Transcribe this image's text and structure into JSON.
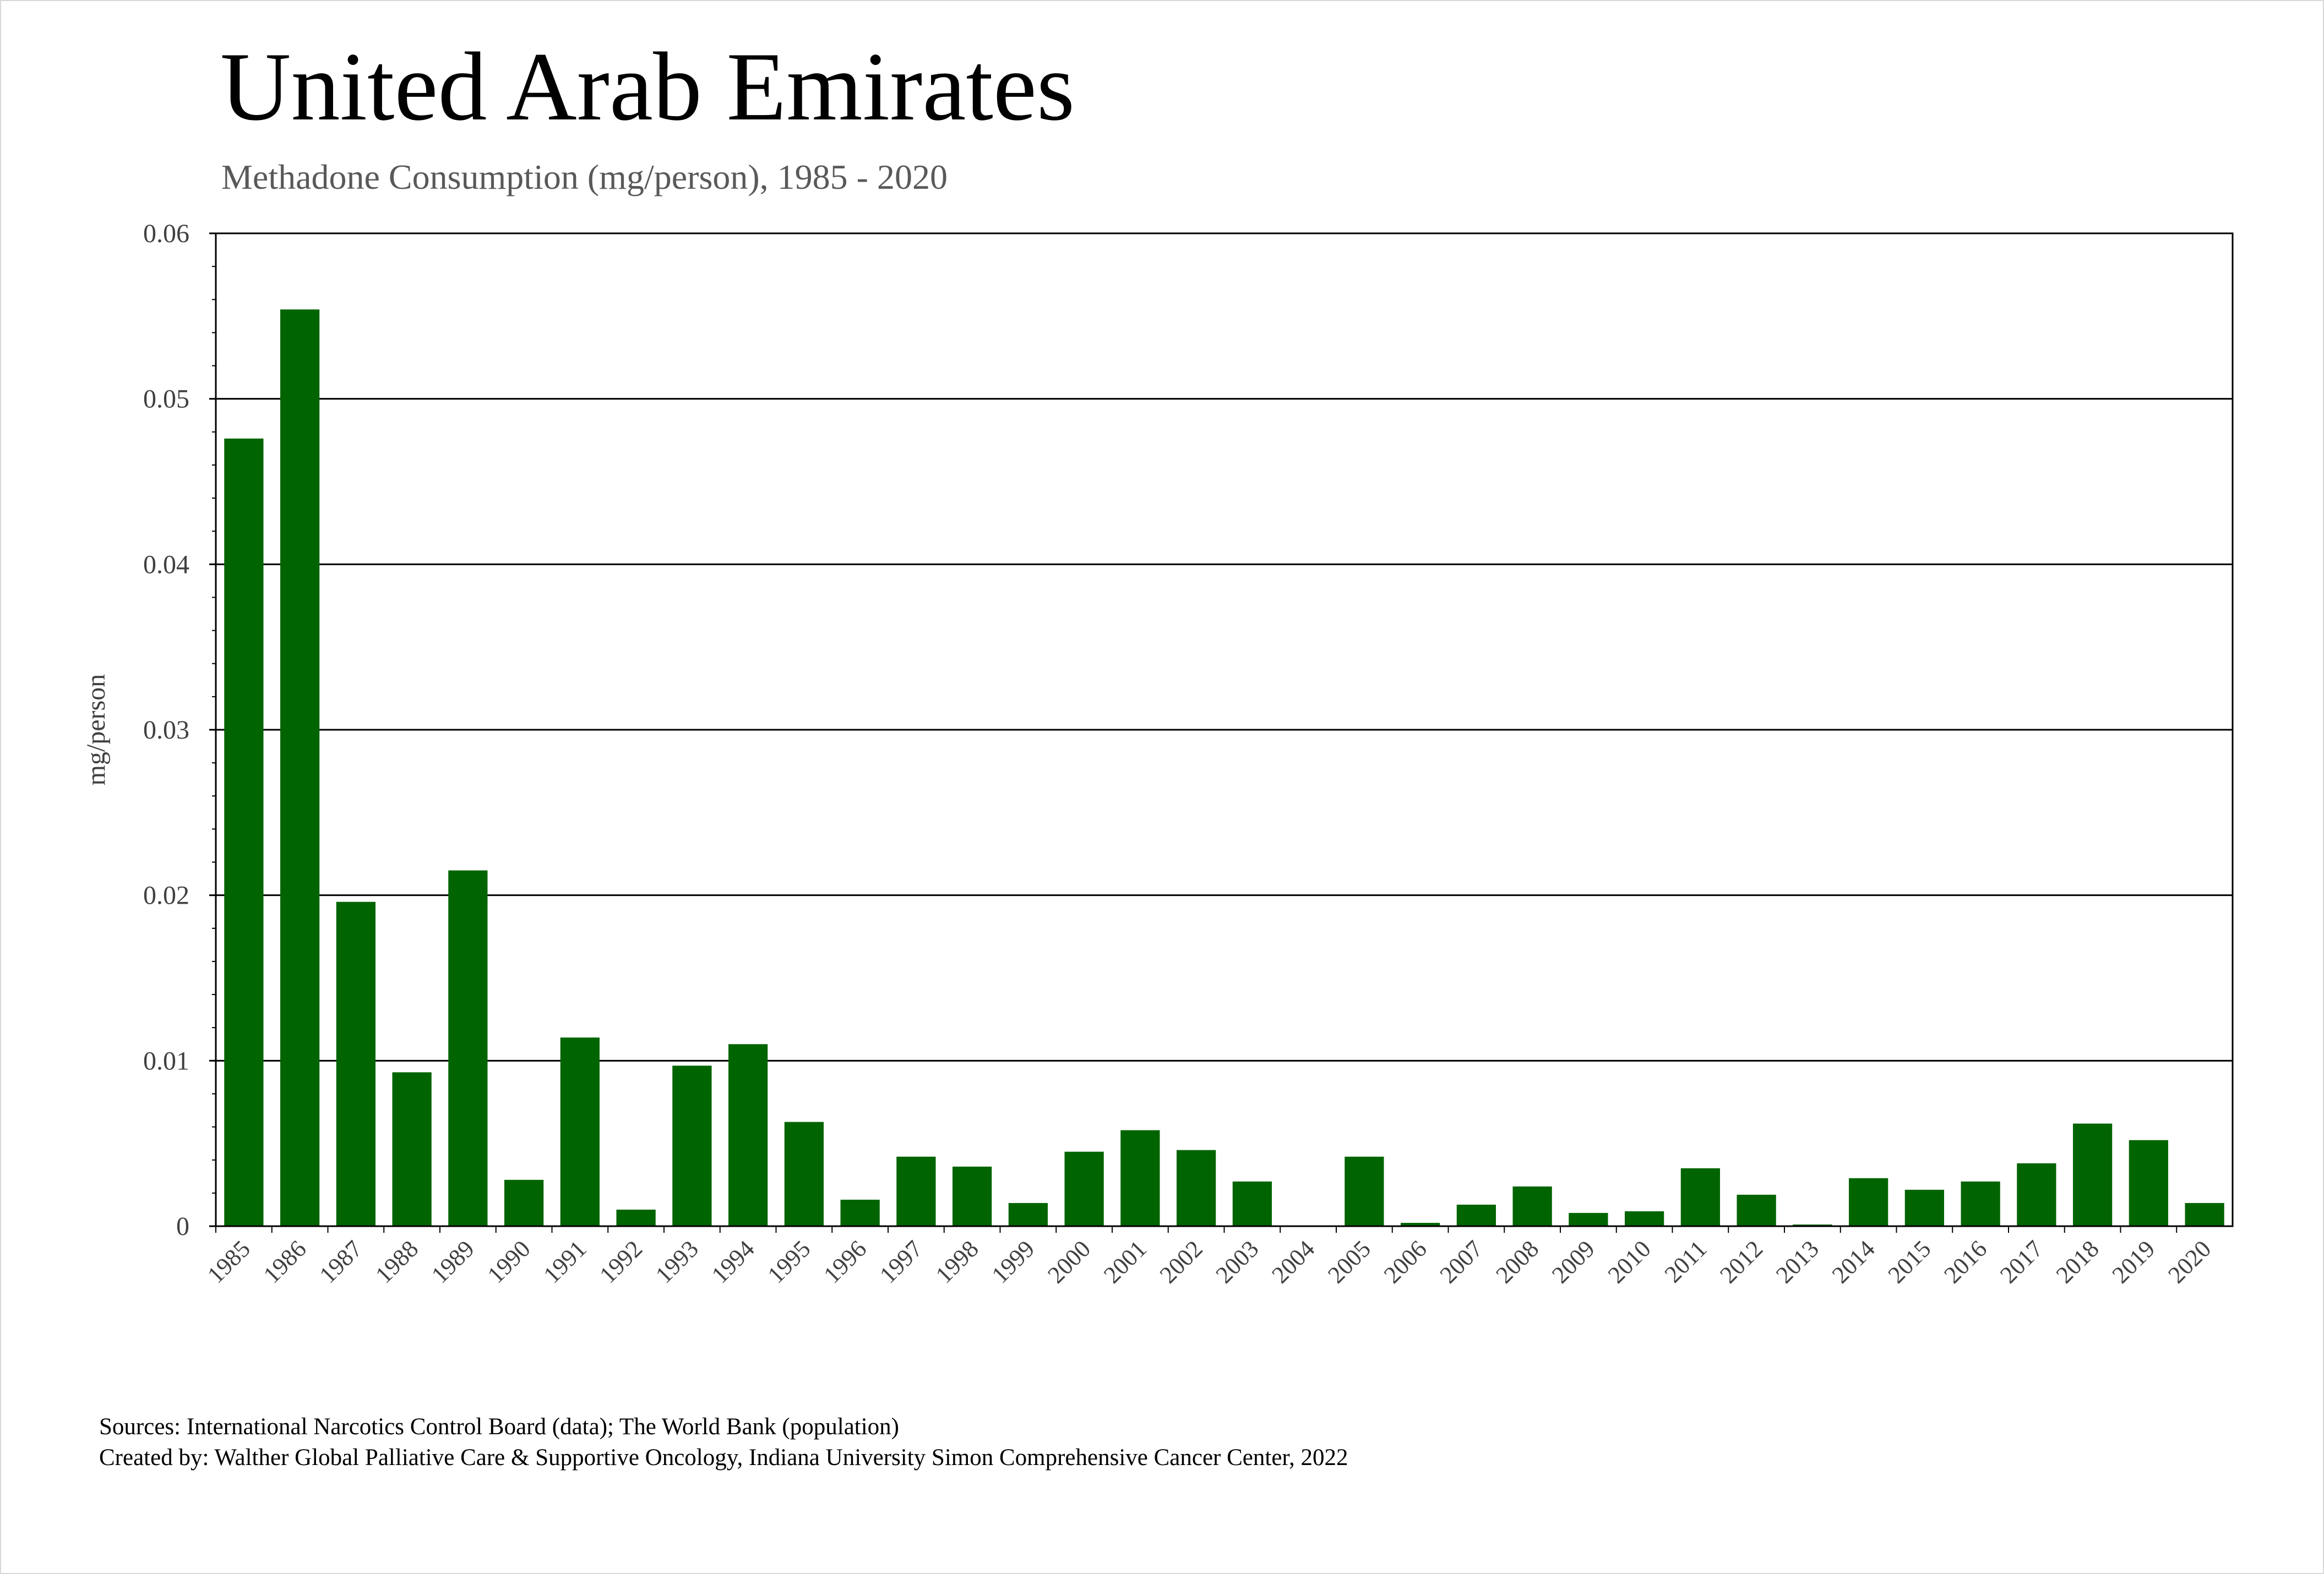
{
  "header": {
    "title": "United Arab Emirates",
    "subtitle": "Methadone Consumption (mg/person), 1985 - 2020"
  },
  "footer": {
    "sources": "Sources: International Narcotics Control Board (data); The World Bank (population)",
    "created_by": "Created by: Walther Global Palliative Care & Supportive Oncology, Indiana University Simon Comprehensive Cancer Center, 2022"
  },
  "chart_data": {
    "type": "bar",
    "title": "United Arab Emirates",
    "subtitle": "Methadone Consumption (mg/person), 1985 - 2020",
    "xlabel": "",
    "ylabel": "mg/person",
    "ylim": [
      0,
      0.06
    ],
    "yticks": [
      "0",
      "0.01",
      "0.02",
      "0.03",
      "0.04",
      "0.05",
      "0.06"
    ],
    "grid": "horizontal",
    "bar_color": "#006400",
    "categories": [
      "1985",
      "1986",
      "1987",
      "1988",
      "1989",
      "1990",
      "1991",
      "1992",
      "1993",
      "1994",
      "1995",
      "1996",
      "1997",
      "1998",
      "1999",
      "2000",
      "2001",
      "2002",
      "2003",
      "2004",
      "2005",
      "2006",
      "2007",
      "2008",
      "2009",
      "2010",
      "2011",
      "2012",
      "2013",
      "2014",
      "2015",
      "2016",
      "2017",
      "2018",
      "2019",
      "2020"
    ],
    "values": [
      0.0476,
      0.0554,
      0.0196,
      0.0093,
      0.0215,
      0.0028,
      0.0114,
      0.001,
      0.0097,
      0.011,
      0.0063,
      0.0016,
      0.0042,
      0.0036,
      0.0014,
      0.0045,
      0.0058,
      0.0046,
      0.0027,
      0.0,
      0.0042,
      0.0002,
      0.0013,
      0.0024,
      0.0008,
      0.0009,
      0.0035,
      0.0019,
      0.0001,
      0.0029,
      0.0022,
      0.0027,
      0.0038,
      0.0062,
      0.0052,
      0.0014
    ]
  }
}
